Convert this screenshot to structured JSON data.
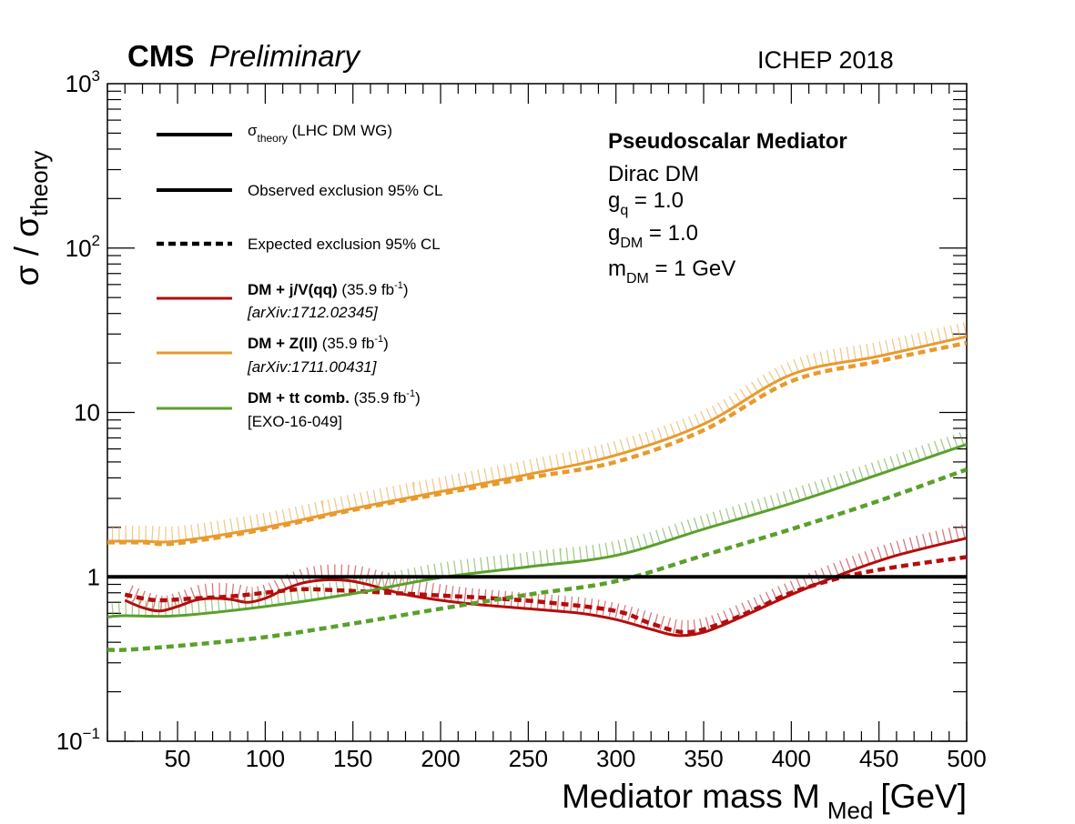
{
  "header": {
    "experiment": "CMS",
    "status": "Preliminary",
    "conference": "ICHEP 2018"
  },
  "info_box": {
    "title": "Pseudoscalar Mediator",
    "line1": "Dirac DM",
    "gq": {
      "sym": "g",
      "sub": "q",
      "rest": " = 1.0"
    },
    "gdm": {
      "sym": "g",
      "sub": "DM",
      "rest": " = 1.0"
    },
    "mdm": {
      "sym": "m",
      "sub": "DM",
      "rest": " = 1 GeV"
    }
  },
  "axes": {
    "x_label_main": "Mediator mass M",
    "x_label_sub": "Med",
    "x_label_unit": "[GeV]",
    "y_label_num": "σ / σ",
    "y_label_sub": "theory",
    "x_ticks": [
      "50",
      "100",
      "150",
      "200",
      "250",
      "300",
      "350",
      "400",
      "450",
      "500"
    ],
    "y_ticks": [
      {
        "value": 0.1,
        "label": "10",
        "sup": "−1"
      },
      {
        "value": 1,
        "label": "1",
        "sup": ""
      },
      {
        "value": 10,
        "label": "10",
        "sup": ""
      },
      {
        "value": 100,
        "label": "10",
        "sup": "2"
      },
      {
        "value": 1000,
        "label": "10",
        "sup": "3"
      }
    ]
  },
  "legend": {
    "theory": {
      "sym": "σ",
      "sub": "theory",
      "rest": " (LHC DM WG)"
    },
    "observed": "Observed exclusion 95% CL",
    "expected": "Expected exclusion 95% CL",
    "red": {
      "bold": "DM + j/V(qq)",
      "lumi": " (35.9 fb",
      "sup": "-1",
      "close": ")",
      "ref": "[arXiv:1712.02345]"
    },
    "orange": {
      "bold": "DM + Z(ll)",
      "lumi": " (35.9 fb",
      "sup": "-1",
      "close": ")",
      "ref": "[arXiv:1711.00431]"
    },
    "green": {
      "bold": "DM + tt comb.",
      "lumi": " (35.9 fb",
      "sup": "-1",
      "close": ")",
      "ref": "[EXO-16-049]"
    }
  },
  "colors": {
    "red": "#b40d0d",
    "orange": "#e89a2e",
    "green": "#5aa02c",
    "black": "#000000"
  },
  "chart_data": {
    "type": "line",
    "xlabel": "Mediator mass M_Med [GeV]",
    "ylabel": "σ / σ_theory",
    "xlim": [
      10,
      500
    ],
    "ylim": [
      0.1,
      1000
    ],
    "yscale": "log",
    "grid": false,
    "legend_position": "top-left",
    "series": [
      {
        "name": "DM + j/V(qq) observed",
        "color": "red",
        "style": "solid",
        "x": [
          20,
          30,
          40,
          50,
          60,
          70,
          80,
          90,
          100,
          110,
          120,
          130,
          140,
          150,
          160,
          170,
          180,
          200,
          220,
          250,
          280,
          300,
          320,
          335,
          350,
          370,
          400,
          430,
          460,
          500
        ],
        "y": [
          0.72,
          0.65,
          0.62,
          0.66,
          0.72,
          0.74,
          0.73,
          0.7,
          0.74,
          0.83,
          0.91,
          0.95,
          0.96,
          0.94,
          0.89,
          0.83,
          0.78,
          0.72,
          0.68,
          0.64,
          0.6,
          0.55,
          0.48,
          0.44,
          0.46,
          0.56,
          0.78,
          1.05,
          1.35,
          1.72
        ]
      },
      {
        "name": "DM + j/V(qq) expected",
        "color": "red",
        "style": "dashed",
        "x": [
          20,
          30,
          40,
          60,
          80,
          100,
          120,
          140,
          160,
          180,
          200,
          230,
          260,
          300,
          320,
          340,
          360,
          380,
          400,
          430,
          460,
          500
        ],
        "y": [
          0.78,
          0.74,
          0.72,
          0.74,
          0.76,
          0.8,
          0.84,
          0.83,
          0.81,
          0.79,
          0.77,
          0.74,
          0.7,
          0.62,
          0.52,
          0.46,
          0.52,
          0.64,
          0.8,
          1.0,
          1.15,
          1.32
        ]
      },
      {
        "name": "DM + Z(ll) observed",
        "color": "orange",
        "style": "solid",
        "x": [
          10,
          30,
          50,
          100,
          150,
          200,
          250,
          300,
          350,
          400,
          450,
          500
        ],
        "y": [
          1.65,
          1.65,
          1.65,
          2.0,
          2.6,
          3.3,
          4.2,
          5.5,
          8.5,
          17.0,
          22.0,
          29.0
        ]
      },
      {
        "name": "DM + Z(ll) expected",
        "color": "orange",
        "style": "dashed",
        "x": [
          10,
          30,
          50,
          100,
          150,
          200,
          250,
          300,
          350,
          400,
          450,
          500
        ],
        "y": [
          1.62,
          1.62,
          1.6,
          1.95,
          2.55,
          3.2,
          4.0,
          5.0,
          7.8,
          15.5,
          20.5,
          26.5
        ]
      },
      {
        "name": "DM + tt comb. observed",
        "color": "green",
        "style": "solid",
        "x": [
          10,
          20,
          50,
          100,
          150,
          200,
          250,
          300,
          350,
          400,
          450,
          500
        ],
        "y": [
          0.57,
          0.58,
          0.58,
          0.66,
          0.79,
          0.99,
          1.15,
          1.35,
          1.95,
          2.8,
          4.2,
          6.4
        ]
      },
      {
        "name": "DM + tt comb. expected",
        "color": "green",
        "style": "dashed",
        "x": [
          10,
          20,
          50,
          100,
          150,
          200,
          250,
          300,
          350,
          400,
          450,
          500
        ],
        "y": [
          0.36,
          0.36,
          0.38,
          0.43,
          0.52,
          0.64,
          0.78,
          0.94,
          1.35,
          1.95,
          2.9,
          4.5
        ]
      },
      {
        "name": "σ theory",
        "color": "black",
        "style": "solid",
        "x": [
          10,
          500
        ],
        "y": [
          1,
          1
        ]
      }
    ]
  }
}
